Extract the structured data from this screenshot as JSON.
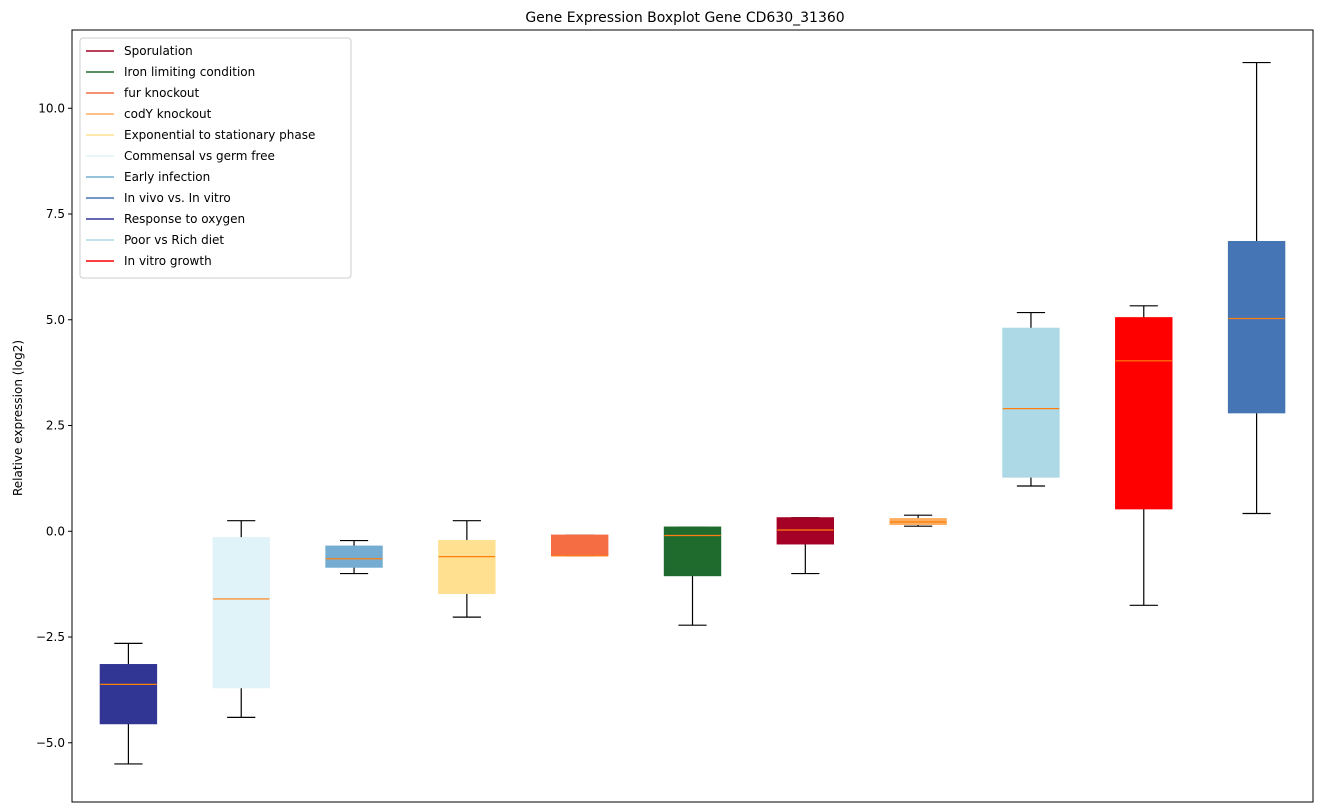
{
  "chart_data": {
    "type": "boxplot",
    "title": "Gene Expression Boxplot Gene CD630_31360",
    "xlabel": "",
    "ylabel": "Relative expression (log2)",
    "ylim": [
      -6.4,
      11.85
    ],
    "yticks": [
      -5.0,
      -2.5,
      0.0,
      2.5,
      5.0,
      7.5,
      10.0
    ],
    "ytick_labels": [
      "−5.0",
      "−2.5",
      "0.0",
      "2.5",
      "5.0",
      "7.5",
      "10.0"
    ],
    "legend_position": "top-left",
    "median_color": "#ff7f0e",
    "legend": [
      {
        "name": "Sporulation",
        "color": "#a50026"
      },
      {
        "name": "Iron limiting condition",
        "color": "#1f6b2e"
      },
      {
        "name": "fur knockout",
        "color": "#f46d43"
      },
      {
        "name": "codY knockout",
        "color": "#fdae61"
      },
      {
        "name": "Exponential to stationary phase",
        "color": "#fee090"
      },
      {
        "name": "Commensal vs germ free",
        "color": "#e0f3f8"
      },
      {
        "name": "Early infection",
        "color": "#74add1"
      },
      {
        "name": "In vivo vs. In vitro",
        "color": "#4575b4"
      },
      {
        "name": "Response to oxygen",
        "color": "#313695"
      },
      {
        "name": "Poor vs Rich diet",
        "color": "#add8e6"
      },
      {
        "name": "In vitro growth",
        "color": "#ff0000"
      }
    ],
    "boxes": [
      {
        "name": "Response to oxygen",
        "color": "#313695",
        "whisker_low": -5.5,
        "q1": -4.55,
        "median": -3.62,
        "q3": -3.15,
        "whisker_high": -2.65
      },
      {
        "name": "Commensal vs germ free",
        "color": "#e0f3f8",
        "whisker_low": -4.4,
        "q1": -3.7,
        "median": -1.6,
        "q3": -0.15,
        "whisker_high": 0.25
      },
      {
        "name": "Early infection",
        "color": "#74add1",
        "whisker_low": -1.0,
        "q1": -0.85,
        "median": -0.65,
        "q3": -0.35,
        "whisker_high": -0.22
      },
      {
        "name": "Exponential to stationary phase",
        "color": "#fee090",
        "whisker_low": -2.03,
        "q1": -1.47,
        "median": -0.6,
        "q3": -0.22,
        "whisker_high": 0.25
      },
      {
        "name": "fur knockout",
        "color": "#f46d43",
        "whisker_low": -0.58,
        "q1": -0.58,
        "median": -0.58,
        "q3": -0.09,
        "whisker_high": -0.09
      },
      {
        "name": "Iron limiting condition",
        "color": "#1f6b2e",
        "whisker_low": -2.22,
        "q1": -1.05,
        "median": -0.1,
        "q3": 0.1,
        "whisker_high": 0.1
      },
      {
        "name": "Sporulation",
        "color": "#a50026",
        "whisker_low": -1.0,
        "q1": -0.3,
        "median": 0.03,
        "q3": 0.32,
        "whisker_high": 0.32
      },
      {
        "name": "codY knockout",
        "color": "#fdae61",
        "whisker_low": 0.12,
        "q1": 0.16,
        "median": 0.22,
        "q3": 0.3,
        "whisker_high": 0.38
      },
      {
        "name": "Poor vs Rich diet",
        "color": "#add8e6",
        "whisker_low": 1.07,
        "q1": 1.28,
        "median": 2.9,
        "q3": 4.8,
        "whisker_high": 5.17
      },
      {
        "name": "In vitro growth",
        "color": "#ff0000",
        "whisker_low": -1.75,
        "q1": 0.53,
        "median": 4.03,
        "q3": 5.05,
        "whisker_high": 5.33
      },
      {
        "name": "In vivo vs. In vitro",
        "color": "#4575b4",
        "whisker_low": 0.42,
        "q1": 2.8,
        "median": 5.03,
        "q3": 6.85,
        "whisker_high": 11.08
      }
    ]
  }
}
